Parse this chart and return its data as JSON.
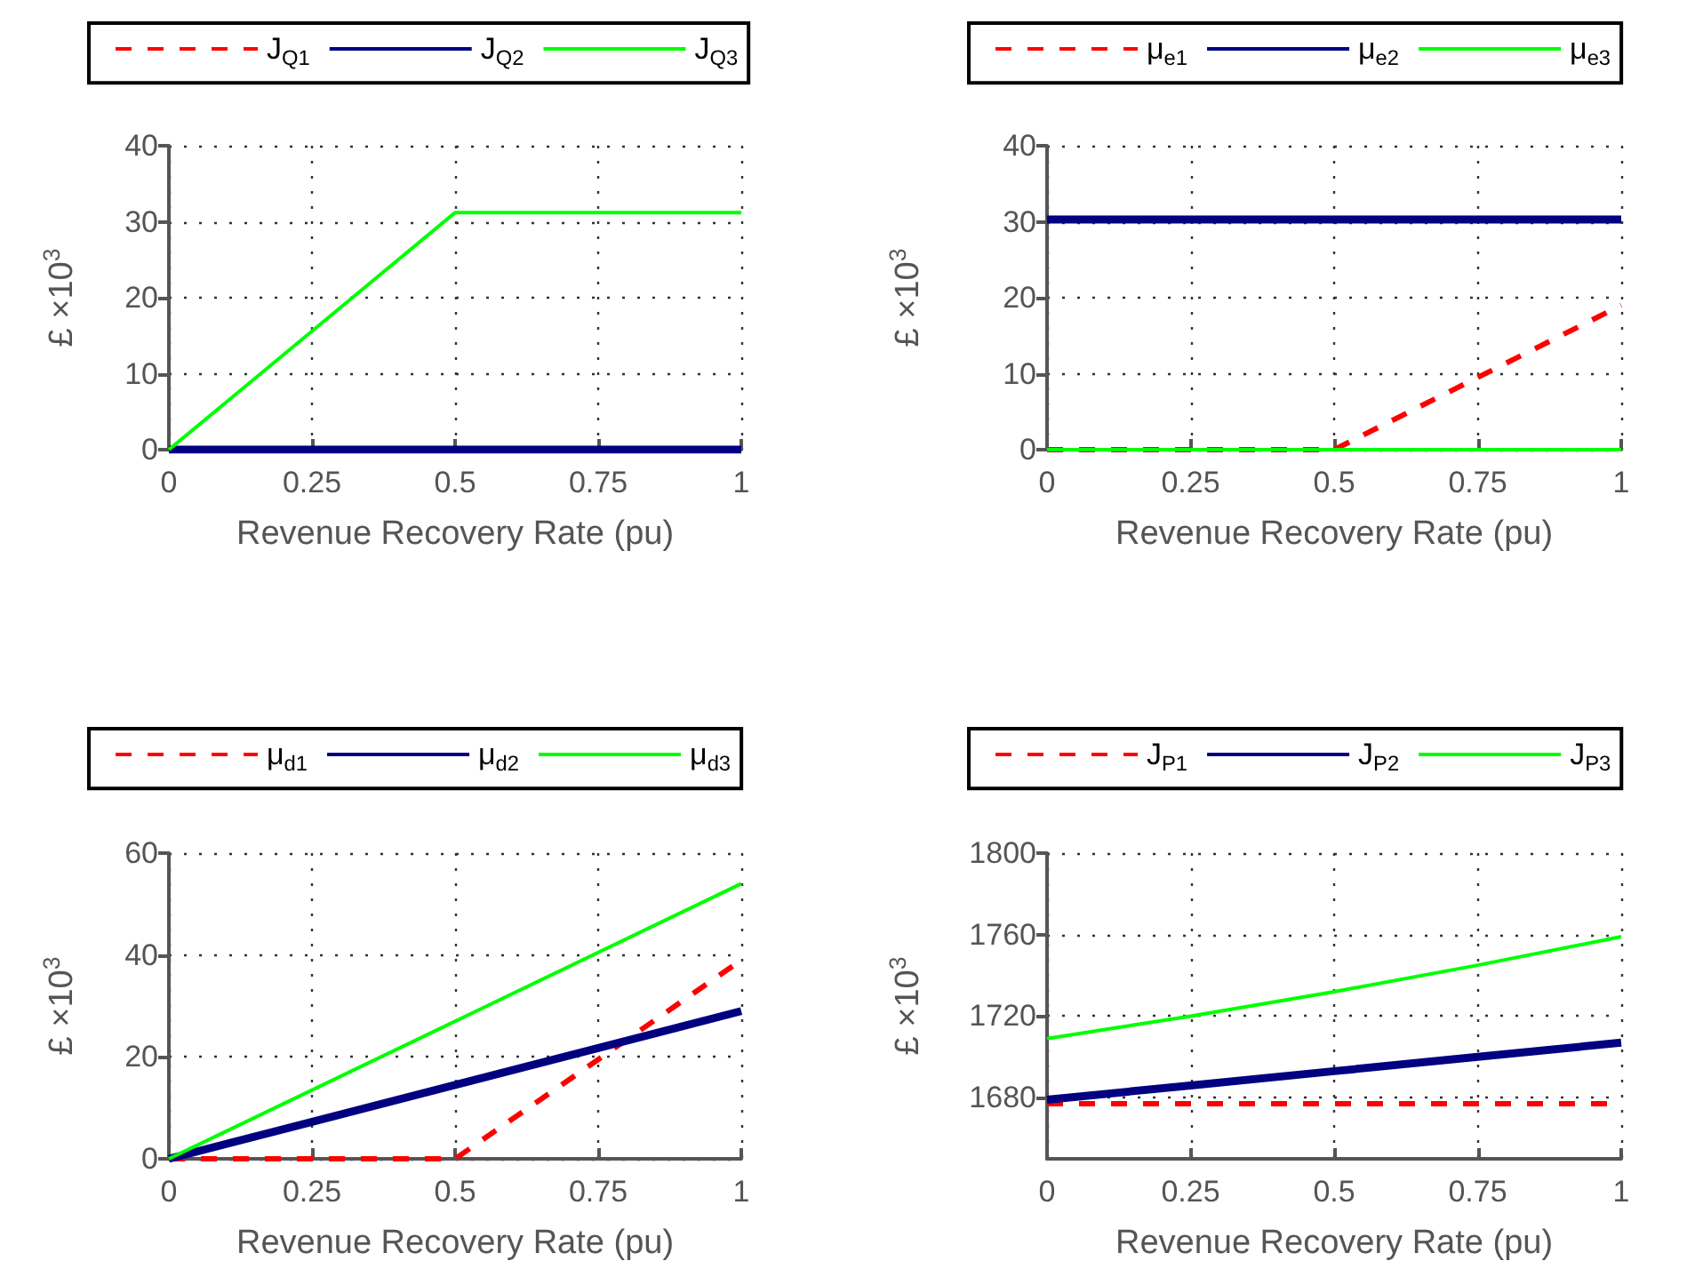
{
  "chart_data": [
    {
      "type": "line",
      "xlabel": "Revenue Recovery Rate (pu)",
      "ylabel": "£ ×10$^{3}$",
      "x": [
        0,
        0.5,
        1
      ],
      "xlim": [
        0,
        1
      ],
      "xticks": [
        0,
        0.25,
        0.5,
        0.75,
        1
      ],
      "ylim": [
        0,
        40
      ],
      "yticks": [
        0,
        10,
        20,
        30,
        40
      ],
      "grid": true,
      "legend": "top",
      "marker": "none",
      "series": [
        {
          "name": "J$_{Q1}$",
          "color": "#ff0000",
          "line_style": "dashed",
          "values": [
            null,
            null,
            null
          ]
        },
        {
          "name": "J$_{Q2}$",
          "color": "#000080",
          "line_style": "solid",
          "values": [
            0,
            0,
            0
          ]
        },
        {
          "name": "J$_{Q3}$",
          "color": "#00ff00",
          "line_style": "solid",
          "values": [
            0,
            31.2,
            31.2
          ]
        }
      ]
    },
    {
      "type": "line",
      "xlabel": "Revenue Recovery Rate (pu)",
      "ylabel": "£ ×10$^{3}$",
      "x": [
        0,
        0.5,
        1
      ],
      "xlim": [
        0,
        1
      ],
      "xticks": [
        0,
        0.25,
        0.5,
        0.75,
        1
      ],
      "ylim": [
        0,
        40
      ],
      "yticks": [
        0,
        10,
        20,
        30,
        40
      ],
      "grid": true,
      "legend": "top",
      "marker": "none",
      "series": [
        {
          "name": "μ$_{e1}$",
          "color": "#ff0000",
          "line_style": "dashed",
          "values": [
            0,
            0,
            19
          ]
        },
        {
          "name": "μ$_{e2}$",
          "color": "#000080",
          "line_style": "solid",
          "values": [
            30.3,
            30.3,
            30.3
          ]
        },
        {
          "name": "μ$_{e3}$",
          "color": "#00ff00",
          "line_style": "solid",
          "values": [
            0,
            0,
            0
          ]
        }
      ]
    },
    {
      "type": "line",
      "xlabel": "Revenue Recovery Rate (pu)",
      "ylabel": "£ ×10$^{3}$",
      "x": [
        0,
        0.5,
        1
      ],
      "xlim": [
        0,
        1
      ],
      "xticks": [
        0,
        0.25,
        0.5,
        0.75,
        1
      ],
      "ylim": [
        0,
        60
      ],
      "yticks": [
        0,
        20,
        40,
        60
      ],
      "grid": true,
      "legend": "top",
      "marker": "none",
      "series": [
        {
          "name": "μ$_{d1}$",
          "color": "#ff0000",
          "line_style": "dashed",
          "values": [
            0,
            0,
            39
          ]
        },
        {
          "name": "μ$_{d2}$",
          "color": "#000080",
          "line_style": "solid",
          "values": [
            0,
            14.5,
            29
          ]
        },
        {
          "name": "μ$_{d3}$",
          "color": "#00ff00",
          "line_style": "solid",
          "values": [
            0,
            27,
            54
          ]
        }
      ]
    },
    {
      "type": "line",
      "xlabel": "Revenue Recovery Rate (pu)",
      "ylabel": "£ ×10$^{3}$",
      "x": [
        0,
        0.25,
        0.5,
        0.75,
        1
      ],
      "xlim": [
        0,
        1
      ],
      "xticks": [
        0,
        0.25,
        0.5,
        0.75,
        1
      ],
      "ylim": [
        1650,
        1800
      ],
      "yticks": [
        1680,
        1720,
        1760,
        1800
      ],
      "grid": true,
      "legend": "top",
      "marker": "none",
      "series": [
        {
          "name": "J$_{P1}$",
          "color": "#ff0000",
          "line_style": "dashed",
          "values": [
            1677,
            1677,
            1677,
            1677,
            1677
          ]
        },
        {
          "name": "J$_{P2}$",
          "color": "#000080",
          "line_style": "solid",
          "values": [
            1679,
            1686,
            1693,
            1700,
            1707
          ]
        },
        {
          "name": "J$_{P3}$",
          "color": "#00ff00",
          "line_style": "solid",
          "values": [
            1709,
            1720,
            1732,
            1745,
            1759
          ]
        }
      ]
    }
  ]
}
